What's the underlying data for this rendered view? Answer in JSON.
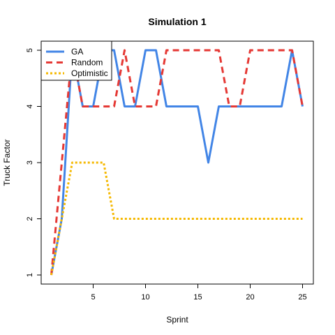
{
  "chart_data": {
    "type": "line",
    "title": "Simulation 1",
    "xlabel": "Sprint",
    "ylabel": "Truck Factor",
    "xlim": [
      1,
      25
    ],
    "ylim": [
      1,
      5
    ],
    "xticks": [
      5,
      10,
      15,
      20,
      25
    ],
    "yticks": [
      1,
      2,
      3,
      4,
      5
    ],
    "grid": false,
    "legend_position": "top-left",
    "x": [
      1,
      2,
      3,
      4,
      5,
      6,
      7,
      8,
      9,
      10,
      11,
      12,
      13,
      14,
      15,
      16,
      17,
      18,
      19,
      20,
      21,
      22,
      23,
      24,
      25
    ],
    "series": [
      {
        "name": "GA",
        "color": "#4285E6",
        "dash": "solid",
        "values": [
          1,
          2,
          5,
          4,
          4,
          5,
          5,
          4,
          4,
          5,
          5,
          4,
          4,
          4,
          4,
          3,
          4,
          4,
          4,
          4,
          4,
          4,
          4,
          5,
          4
        ]
      },
      {
        "name": "Random",
        "color": "#E53935",
        "dash": "dashed",
        "values": [
          1,
          3,
          5,
          4,
          4,
          4,
          4,
          5,
          4,
          4,
          4,
          5,
          5,
          5,
          5,
          5,
          5,
          4,
          4,
          5,
          5,
          5,
          5,
          5,
          4
        ]
      },
      {
        "name": "Optimistic",
        "color": "#F5B800",
        "dash": "dotted",
        "values": [
          1,
          2,
          3,
          3,
          3,
          3,
          2,
          2,
          2,
          2,
          2,
          2,
          2,
          2,
          2,
          2,
          2,
          2,
          2,
          2,
          2,
          2,
          2,
          2,
          2
        ]
      }
    ]
  }
}
